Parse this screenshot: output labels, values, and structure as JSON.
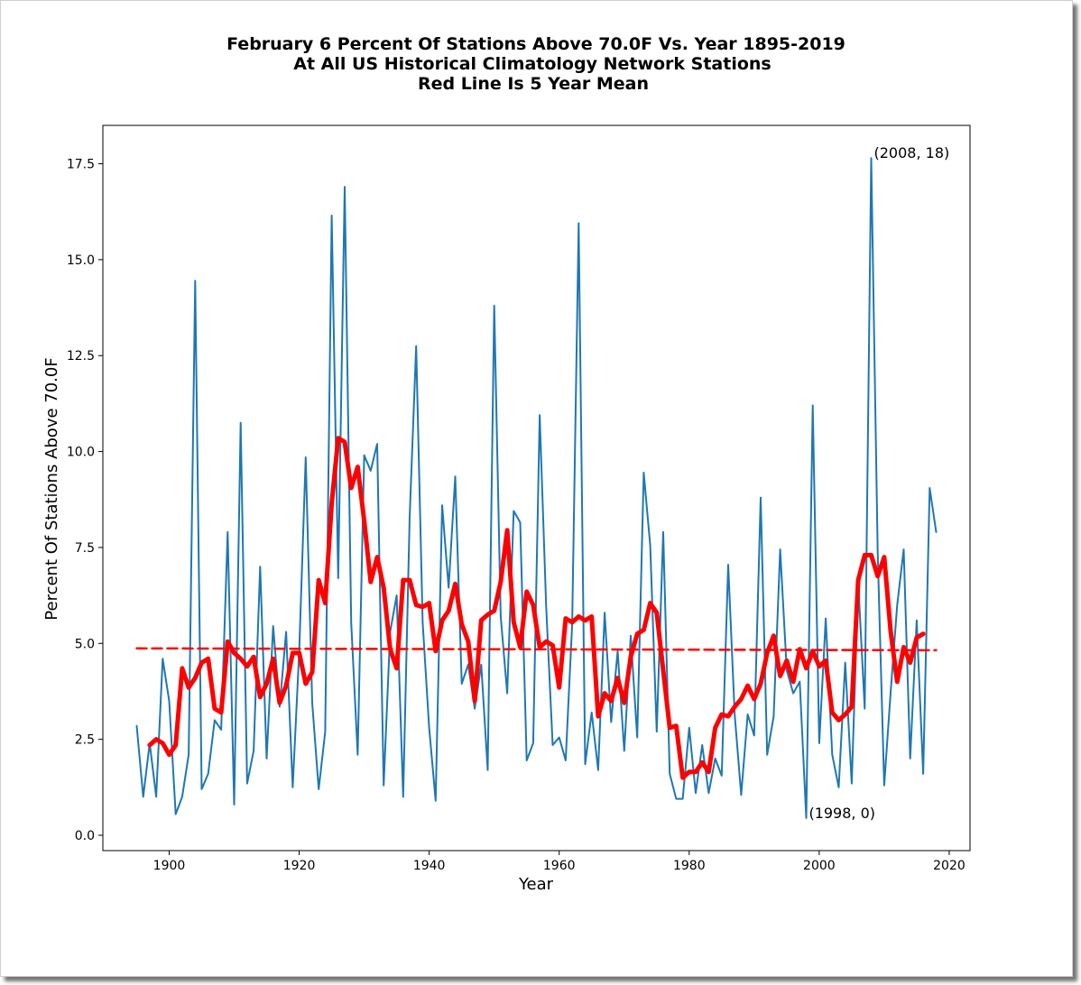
{
  "chart_data": {
    "type": "line",
    "title_lines": [
      "February 6 Percent Of Stations Above 70.0F Vs. Year 1895-2019",
      "At All US Historical Climatology Network Stations",
      "Red Line Is 5 Year Mean"
    ],
    "xlabel": "Year",
    "ylabel": "Percent Of Stations Above 70.0F",
    "xlim": [
      1889.8,
      2023.2
    ],
    "ylim": [
      -0.4,
      18.5
    ],
    "x_ticks": [
      1900,
      1920,
      1940,
      1960,
      1980,
      2000,
      2020
    ],
    "x_tick_labels": [
      "1900",
      "1920",
      "1940",
      "1960",
      "1980",
      "2000",
      "2020"
    ],
    "y_ticks": [
      0.0,
      2.5,
      5.0,
      7.5,
      10.0,
      12.5,
      15.0,
      17.5
    ],
    "y_tick_labels": [
      "0.0",
      "2.5",
      "5.0",
      "7.5",
      "10.0",
      "12.5",
      "15.0",
      "17.5"
    ],
    "grid": false,
    "colors": {
      "annual": "#1f77b4",
      "mean": "#ff0000",
      "trend": "#ff0000"
    },
    "series": [
      {
        "kind": "annual",
        "x": [
          1895,
          1896,
          1897,
          1898,
          1899,
          1900,
          1901,
          1902,
          1903,
          1904,
          1905,
          1906,
          1907,
          1908,
          1909,
          1910,
          1911,
          1912,
          1913,
          1914,
          1915,
          1916,
          1917,
          1918,
          1919,
          1920,
          1921,
          1922,
          1923,
          1924,
          1925,
          1926,
          1927,
          1928,
          1929,
          1930,
          1931,
          1932,
          1933,
          1934,
          1935,
          1936,
          1937,
          1938,
          1939,
          1940,
          1941,
          1942,
          1943,
          1944,
          1945,
          1946,
          1947,
          1948,
          1949,
          1950,
          1951,
          1952,
          1953,
          1954,
          1955,
          1956,
          1957,
          1958,
          1959,
          1960,
          1961,
          1962,
          1963,
          1964,
          1965,
          1966,
          1967,
          1968,
          1969,
          1970,
          1971,
          1972,
          1973,
          1974,
          1975,
          1976,
          1977,
          1978,
          1979,
          1980,
          1981,
          1982,
          1983,
          1984,
          1985,
          1986,
          1987,
          1988,
          1989,
          1990,
          1991,
          1992,
          1993,
          1994,
          1995,
          1996,
          1997,
          1998,
          1999,
          2000,
          2001,
          2002,
          2003,
          2004,
          2005,
          2006,
          2007,
          2008,
          2009,
          2010,
          2011,
          2012,
          2013,
          2014,
          2015,
          2016,
          2017,
          2018
        ],
        "y": [
          2.85,
          1.0,
          2.4,
          1.0,
          4.6,
          3.5,
          0.55,
          1.0,
          2.1,
          14.45,
          1.2,
          1.6,
          3.0,
          2.75,
          7.9,
          0.8,
          10.75,
          1.35,
          2.2,
          7.0,
          2.0,
          5.45,
          3.35,
          5.3,
          1.25,
          4.8,
          9.85,
          3.45,
          1.2,
          2.7,
          16.15,
          6.7,
          16.9,
          5.55,
          2.1,
          9.9,
          9.5,
          10.2,
          1.3,
          5.3,
          6.25,
          1.0,
          8.3,
          12.75,
          5.55,
          2.8,
          0.9,
          8.6,
          6.45,
          9.35,
          3.95,
          4.45,
          3.3,
          4.45,
          1.7,
          13.8,
          5.7,
          3.7,
          8.45,
          8.15,
          1.95,
          2.4,
          10.95,
          5.95,
          2.35,
          2.55,
          1.95,
          5.5,
          15.95,
          1.85,
          3.2,
          1.7,
          5.8,
          2.95,
          4.8,
          2.2,
          5.2,
          2.55,
          9.45,
          7.55,
          2.7,
          7.9,
          1.6,
          0.95,
          0.95,
          2.8,
          1.1,
          2.35,
          1.1,
          2.0,
          1.55,
          7.05,
          3.15,
          1.05,
          3.15,
          2.6,
          8.8,
          2.1,
          3.1,
          7.45,
          4.3,
          3.7,
          4.0,
          0.45,
          11.2,
          2.4,
          5.65,
          2.1,
          1.25,
          4.5,
          1.35,
          6.6,
          3.3,
          17.65,
          7.35,
          1.3,
          3.75,
          6.0,
          7.45,
          2.0,
          5.6,
          1.6,
          9.05,
          7.9
        ]
      },
      {
        "kind": "mean",
        "x": [
          1897,
          1898,
          1899,
          1900,
          1901,
          1902,
          1903,
          1904,
          1905,
          1906,
          1907,
          1908,
          1909,
          1910,
          1911,
          1912,
          1913,
          1914,
          1915,
          1916,
          1917,
          1918,
          1919,
          1920,
          1921,
          1922,
          1923,
          1924,
          1925,
          1926,
          1927,
          1928,
          1929,
          1930,
          1931,
          1932,
          1933,
          1934,
          1935,
          1936,
          1937,
          1938,
          1939,
          1940,
          1941,
          1942,
          1943,
          1944,
          1945,
          1946,
          1947,
          1948,
          1949,
          1950,
          1951,
          1952,
          1953,
          1954,
          1955,
          1956,
          1957,
          1958,
          1959,
          1960,
          1961,
          1962,
          1963,
          1964,
          1965,
          1966,
          1967,
          1968,
          1969,
          1970,
          1971,
          1972,
          1973,
          1974,
          1975,
          1976,
          1977,
          1978,
          1979,
          1980,
          1981,
          1982,
          1983,
          1984,
          1985,
          1986,
          1987,
          1988,
          1989,
          1990,
          1991,
          1992,
          1993,
          1994,
          1995,
          1996,
          1997,
          1998,
          1999,
          2000,
          2001,
          2002,
          2003,
          2004,
          2005,
          2006,
          2007,
          2008,
          2009,
          2010,
          2011,
          2012,
          2013,
          2014,
          2015,
          2016
        ],
        "y": [
          2.35,
          2.5,
          2.4,
          2.1,
          2.35,
          4.35,
          3.85,
          4.1,
          4.5,
          4.6,
          3.3,
          3.2,
          5.05,
          4.75,
          4.6,
          4.4,
          4.65,
          3.6,
          3.95,
          4.6,
          3.45,
          3.9,
          4.75,
          4.75,
          3.95,
          4.25,
          6.65,
          6.05,
          8.65,
          10.35,
          10.25,
          9.05,
          9.6,
          8.2,
          6.6,
          7.25,
          6.45,
          4.85,
          4.35,
          6.65,
          6.65,
          6.0,
          5.95,
          6.05,
          4.8,
          5.6,
          5.85,
          6.55,
          5.5,
          5.05,
          3.5,
          5.6,
          5.75,
          5.85,
          6.6,
          7.95,
          5.55,
          4.9,
          6.35,
          6.0,
          4.9,
          5.05,
          4.95,
          3.85,
          5.65,
          5.55,
          5.7,
          5.6,
          5.7,
          3.1,
          3.7,
          3.5,
          4.1,
          3.45,
          4.65,
          5.25,
          5.35,
          6.05,
          5.8,
          4.3,
          2.8,
          2.85,
          1.5,
          1.65,
          1.65,
          1.9,
          1.65,
          2.8,
          3.15,
          3.1,
          3.35,
          3.55,
          3.9,
          3.55,
          3.95,
          4.75,
          5.2,
          4.15,
          4.55,
          4.0,
          4.85,
          4.35,
          4.8,
          4.4,
          4.55,
          3.2,
          3.0,
          3.15,
          3.35,
          6.65,
          7.3,
          7.3,
          6.75,
          7.25,
          5.3,
          4.0,
          4.9,
          4.5,
          5.15,
          5.25
        ]
      },
      {
        "kind": "trend",
        "x": [
          1895,
          2018
        ],
        "y": [
          4.87,
          4.82
        ]
      }
    ],
    "annotations": [
      {
        "x": 2008,
        "y": 17.65,
        "text": "(2008, 18)"
      },
      {
        "x": 1998,
        "y": 0.45,
        "text": "(1998, 0)"
      }
    ]
  }
}
